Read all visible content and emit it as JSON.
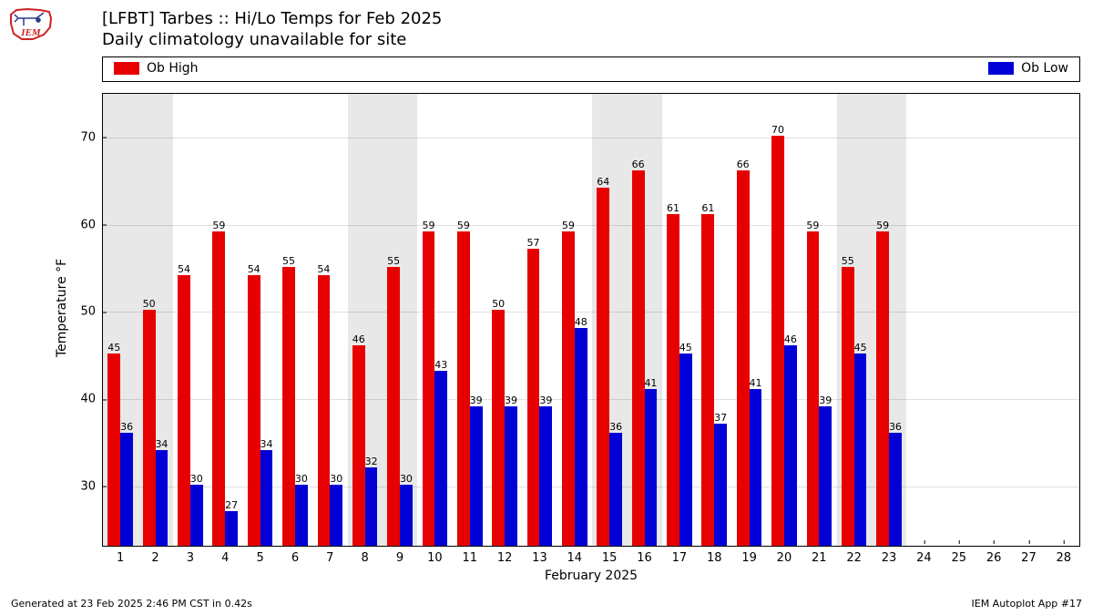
{
  "title_line1": "[LFBT] Tarbes :: Hi/Lo Temps for Feb 2025",
  "title_line2": "Daily climatology unavailable for site",
  "footer_left": "Generated at 23 Feb 2025 2:46 PM CST in 0.42s",
  "footer_right": "IEM Autoplot App #17",
  "ylabel": "Temperature °F",
  "xlabel": "February 2025",
  "legend": {
    "high": {
      "label": "Ob High",
      "color": "#e60000"
    },
    "low": {
      "label": "Ob Low",
      "color": "#0000d6"
    }
  },
  "chart": {
    "type": "bar",
    "x_domain": [
      0.5,
      28.5
    ],
    "y_domain": [
      23,
      75
    ],
    "y_ticks": [
      30,
      40,
      50,
      60,
      70
    ],
    "x_ticks": [
      1,
      2,
      3,
      4,
      5,
      6,
      7,
      8,
      9,
      10,
      11,
      12,
      13,
      14,
      15,
      16,
      17,
      18,
      19,
      20,
      21,
      22,
      23,
      24,
      25,
      26,
      27,
      28
    ],
    "bar_width": 0.36,
    "shaded_days": [
      [
        1,
        2
      ],
      [
        8,
        9
      ],
      [
        15,
        16
      ],
      [
        22,
        23
      ]
    ],
    "shade_color": "#e8e8e8",
    "plot_bg": "#ffffff",
    "label_fontsize": 11,
    "highs": [
      45,
      50,
      54,
      59,
      54,
      55,
      54,
      46,
      55,
      59,
      59,
      50,
      57,
      59,
      64,
      66,
      61,
      61,
      66,
      70,
      59,
      55,
      59
    ],
    "lows": [
      36,
      34,
      30,
      27,
      34,
      30,
      30,
      32,
      30,
      43,
      39,
      39,
      39,
      48,
      36,
      41,
      45,
      37,
      41,
      46,
      39,
      45,
      36
    ]
  },
  "logo": {
    "bg_fill": "#ffffff",
    "outline": "#cc2222",
    "glyph": "#2a3a8a",
    "text": "IEM",
    "text_color": "#cc2222"
  }
}
